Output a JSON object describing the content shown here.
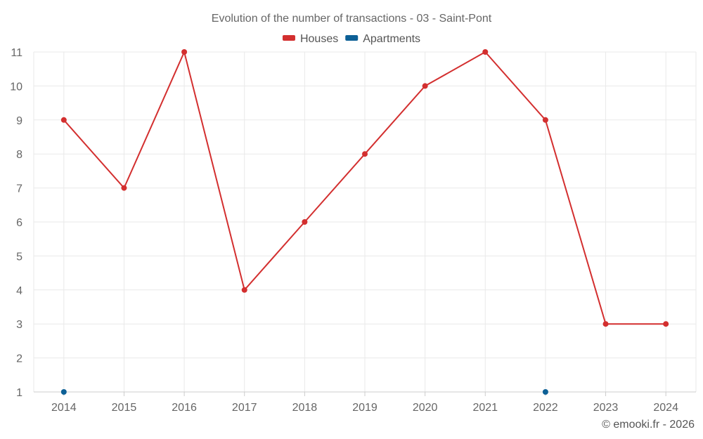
{
  "chart_data": {
    "type": "line",
    "title": "Evolution of the number of transactions - 03 - Saint-Pont",
    "x": [
      "2014",
      "2015",
      "2016",
      "2017",
      "2018",
      "2019",
      "2020",
      "2021",
      "2022",
      "2023",
      "2024"
    ],
    "series": [
      {
        "name": "Houses",
        "color": "#d32f2f",
        "values": [
          9,
          7,
          11,
          4,
          6,
          8,
          10,
          11,
          9,
          3,
          3
        ]
      },
      {
        "name": "Apartments",
        "color": "#0d6096",
        "values": [
          1,
          null,
          null,
          null,
          null,
          null,
          null,
          null,
          1,
          null,
          null
        ]
      }
    ],
    "yticks": [
      1,
      2,
      3,
      4,
      5,
      6,
      7,
      8,
      9,
      10,
      11
    ],
    "ylim": [
      1,
      11
    ],
    "grid": true,
    "legend": "top-center"
  },
  "credit": "© emooki.fr - 2026"
}
